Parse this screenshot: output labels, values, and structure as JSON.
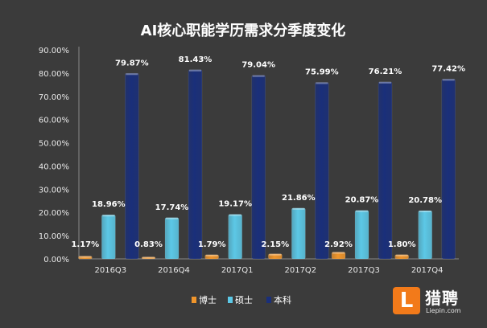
{
  "chart_data": {
    "type": "bar",
    "title": "AI核心职能学历需求分季度变化",
    "categories": [
      "2016Q3",
      "2016Q4",
      "2017Q1",
      "2017Q2",
      "2017Q3",
      "2017Q4"
    ],
    "series": [
      {
        "name": "博士",
        "color": "#f0952b",
        "values": [
          1.17,
          0.83,
          1.79,
          2.15,
          2.92,
          1.8
        ],
        "labels": [
          "1.17%",
          "0.83%",
          "1.79%",
          "2.15%",
          "2.92%",
          "1.80%"
        ]
      },
      {
        "name": "硕士",
        "color": "#5cc8e6",
        "values": [
          18.96,
          17.74,
          19.17,
          21.86,
          20.87,
          20.78
        ],
        "labels": [
          "18.96%",
          "17.74%",
          "19.17%",
          "21.86%",
          "20.87%",
          "20.78%"
        ]
      },
      {
        "name": "本科",
        "color": "#1a2f7a",
        "values": [
          79.87,
          81.43,
          79.04,
          75.99,
          76.21,
          77.42
        ],
        "labels": [
          "79.87%",
          "81.43%",
          "79.04%",
          "75.99%",
          "76.21%",
          "77.42%"
        ]
      }
    ],
    "y_ticks": [
      "0.00%",
      "10.00%",
      "20.00%",
      "30.00%",
      "40.00%",
      "50.00%",
      "60.00%",
      "70.00%",
      "80.00%",
      "90.00%"
    ],
    "ylim": [
      0,
      90
    ],
    "grid": false,
    "legend_position": "bottom-center"
  },
  "logo": {
    "mark": "L",
    "name": "猎聘",
    "sub": "Liepin.com"
  }
}
